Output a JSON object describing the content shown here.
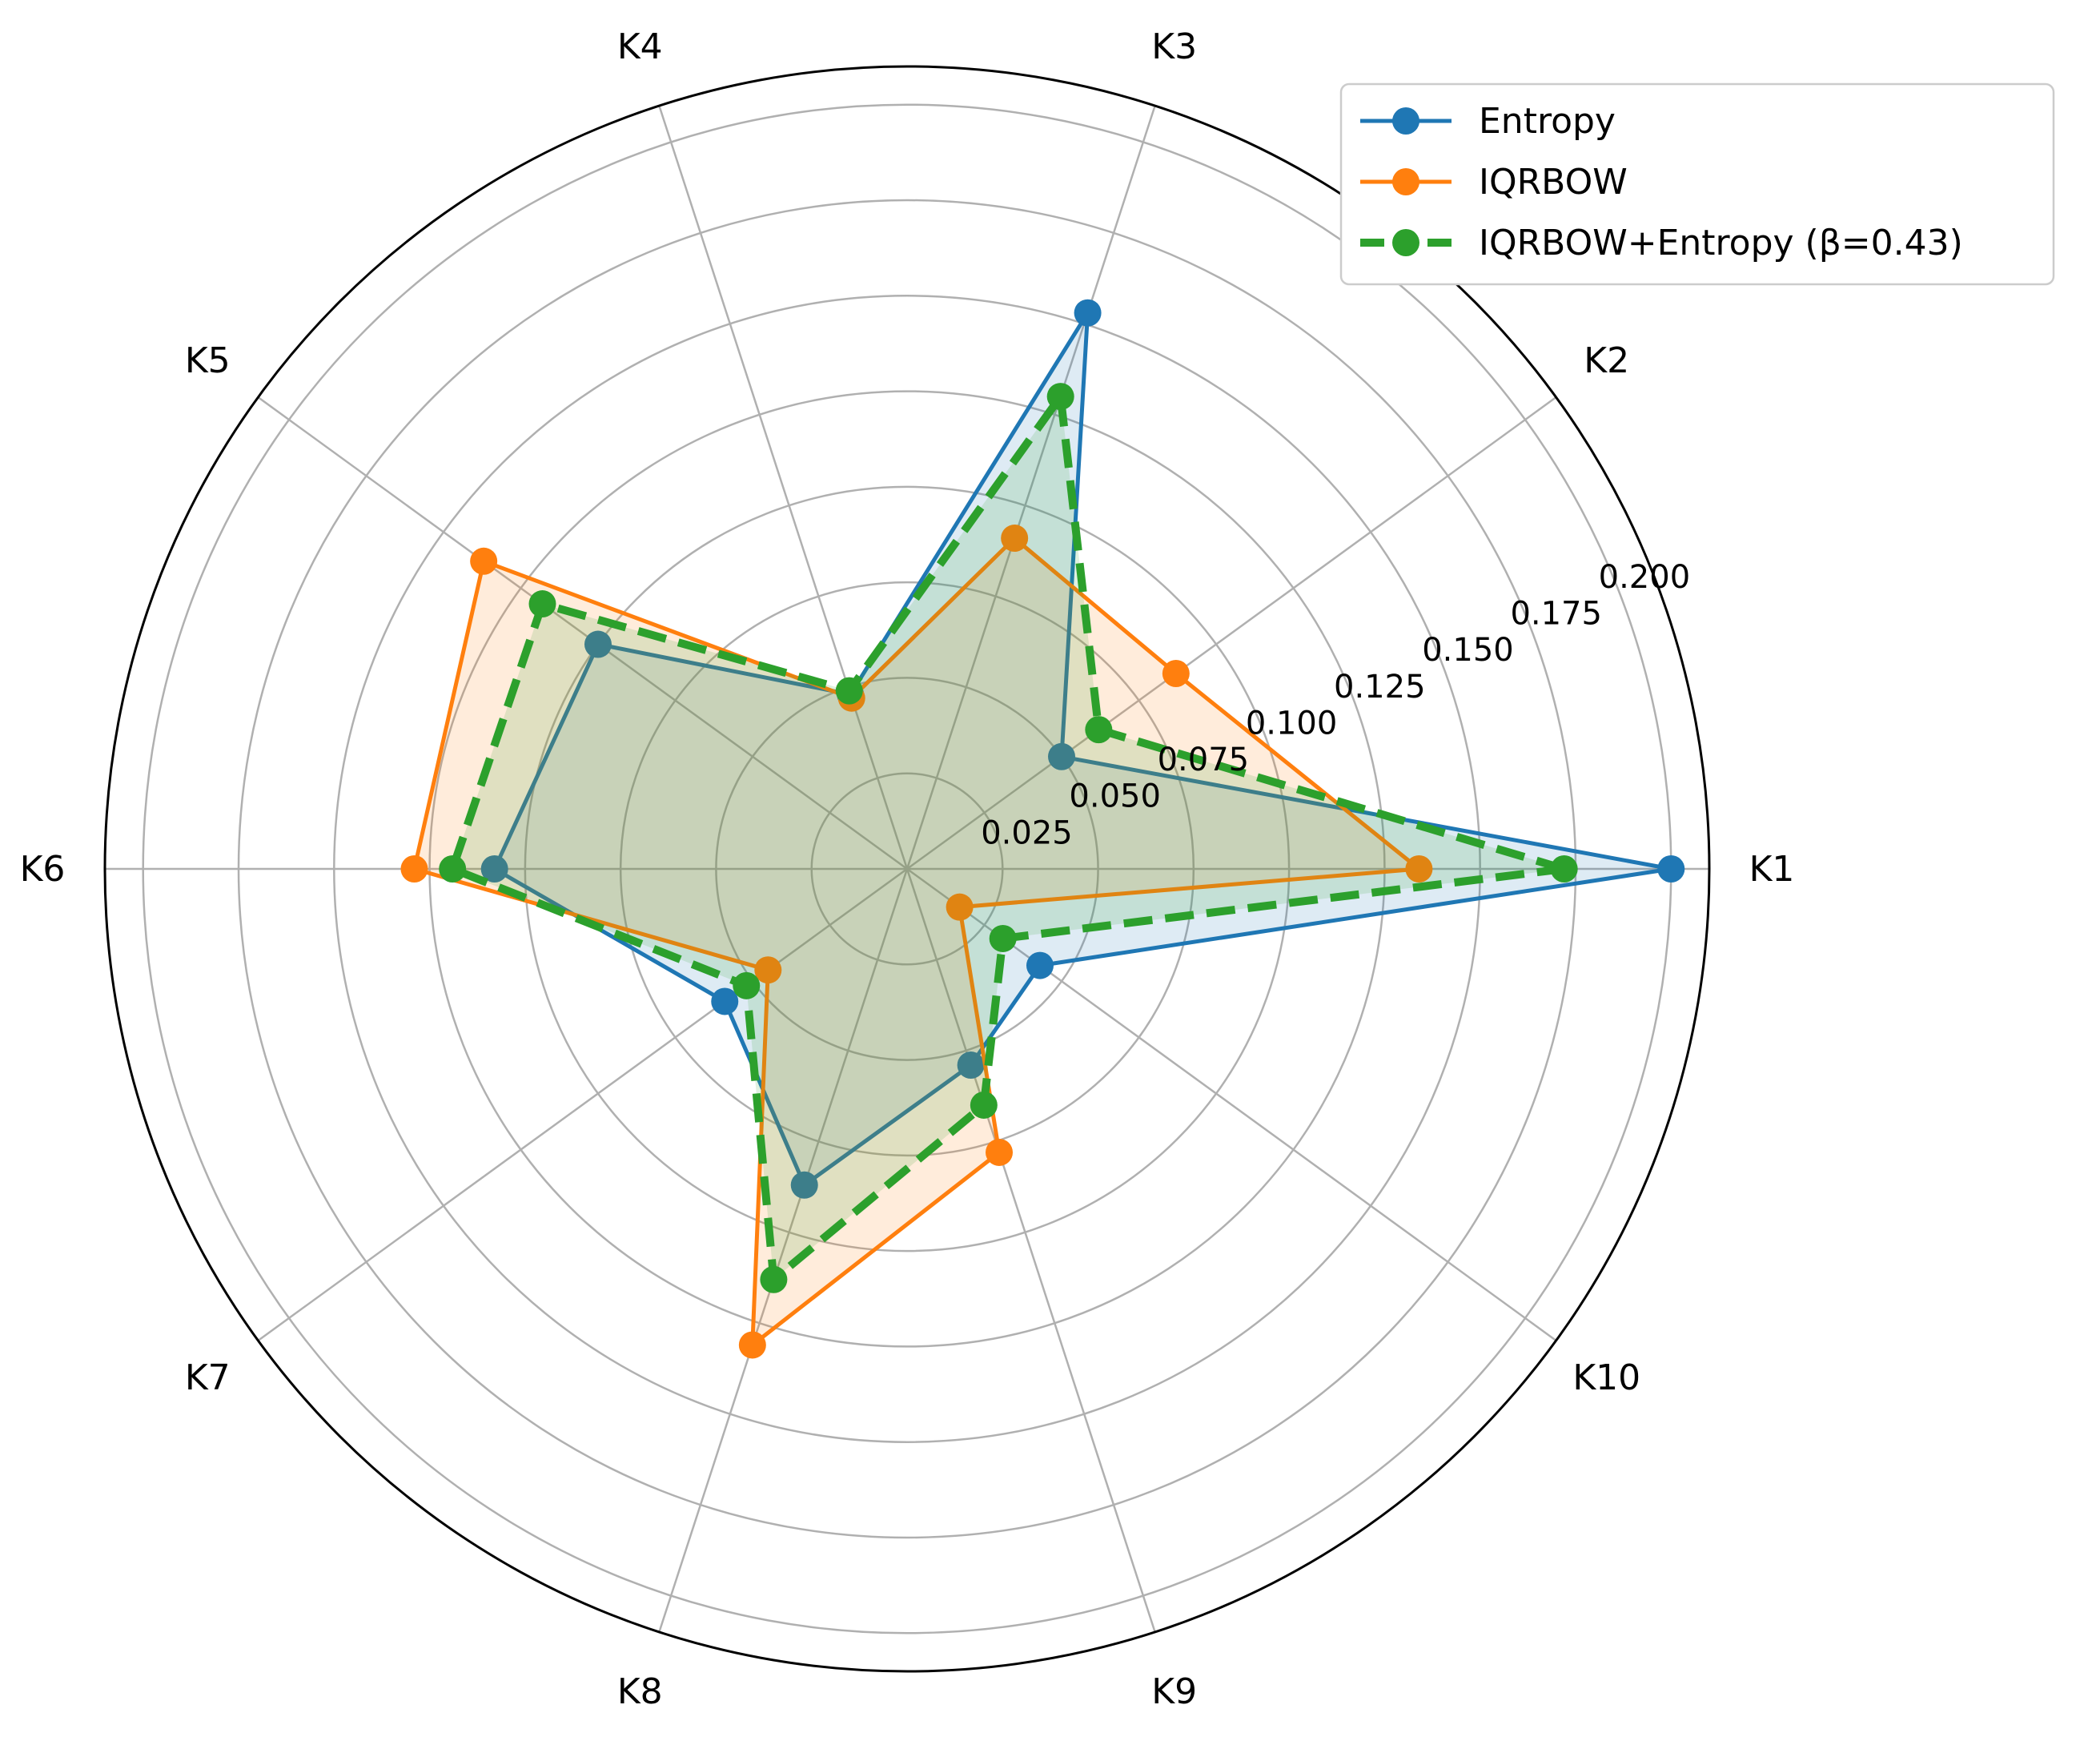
{
  "chart_data": {
    "type": "radar",
    "categories": [
      "K1",
      "K2",
      "K3",
      "K4",
      "K5",
      "K6",
      "K7",
      "K8",
      "K9",
      "K10"
    ],
    "radial_ticks": [
      "0.025",
      "0.050",
      "0.075",
      "0.100",
      "0.125",
      "0.150",
      "0.175",
      "0.200"
    ],
    "rlim": [
      0,
      0.21
    ],
    "grid": true,
    "legend_position": "top-right",
    "series": [
      {
        "name": "Entropy",
        "color": "#1f77b4",
        "line_style": "solid",
        "values": [
          0.2,
          0.05,
          0.153,
          0.048,
          0.1,
          0.108,
          0.059,
          0.087,
          0.054,
          0.043
        ]
      },
      {
        "name": "IQRBOW",
        "color": "#ff7f0e",
        "line_style": "solid",
        "values": [
          0.134,
          0.087,
          0.091,
          0.047,
          0.137,
          0.129,
          0.045,
          0.131,
          0.078,
          0.017
        ]
      },
      {
        "name": "IQRBOW+Entropy (β=0.43)",
        "color": "#2ca02c",
        "line_style": "dashed",
        "values": [
          0.172,
          0.062,
          0.13,
          0.049,
          0.118,
          0.119,
          0.052,
          0.113,
          0.065,
          0.031
        ]
      }
    ]
  }
}
